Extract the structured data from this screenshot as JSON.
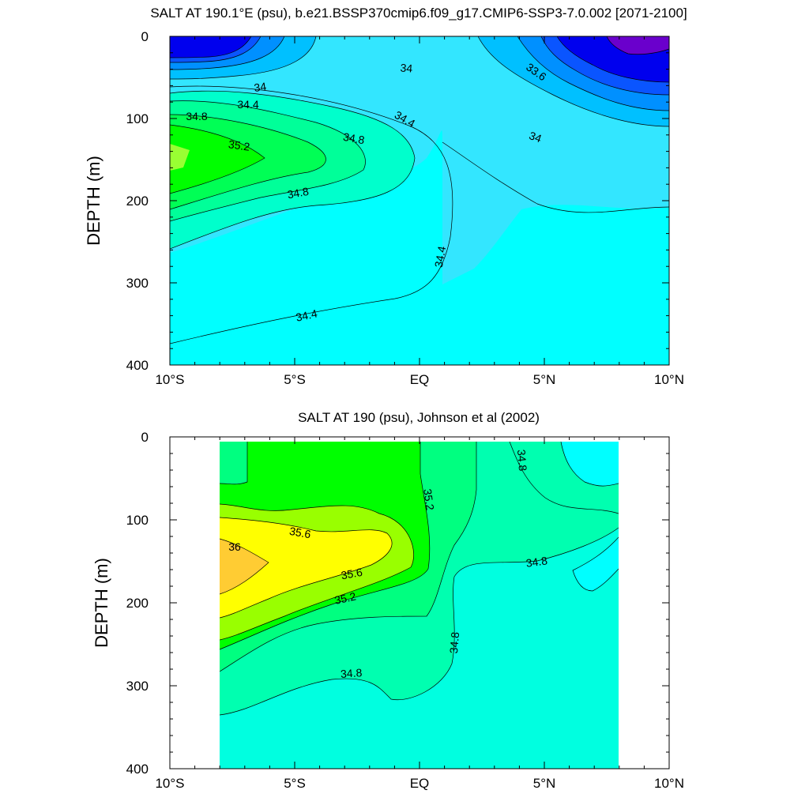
{
  "chart_data": [
    {
      "type": "contour",
      "title": "SALT AT 190.1°E (psu), b.e21.BSSP370cmip6.f09_g17.CMIP6-SSP3-7.0.002 [2071-2100]",
      "ylabel": "DEPTH (m)",
      "xlabel": "",
      "xlim": [
        -10,
        10
      ],
      "ylim": [
        0,
        400
      ],
      "x_ticks": [
        -10,
        -5,
        0,
        5,
        10
      ],
      "x_tick_labels": [
        "10°S",
        "5°S",
        "EQ",
        "5°N",
        "10°N"
      ],
      "y_ticks": [
        0,
        100,
        200,
        300,
        400
      ],
      "y_tick_labels": [
        "0",
        "100",
        "200",
        "300",
        "400"
      ],
      "contour_interval": 0.2,
      "fill_levels": [
        {
          "min": 33.2,
          "max": 33.4,
          "color": "#6a00cc"
        },
        {
          "min": 33.4,
          "max": 33.6,
          "color": "#0000ee"
        },
        {
          "min": 33.6,
          "max": 33.8,
          "color": "#0a55ff"
        },
        {
          "min": 33.8,
          "max": 34.0,
          "color": "#0090ff"
        },
        {
          "min": 34.0,
          "max": 34.2,
          "color": "#00c0ff"
        },
        {
          "min": 34.2,
          "max": 34.4,
          "color": "#33e6ff"
        },
        {
          "min": 34.4,
          "max": 34.6,
          "color": "#00ffff"
        },
        {
          "min": 34.6,
          "max": 34.8,
          "color": "#00ffcc"
        },
        {
          "min": 34.8,
          "max": 35.0,
          "color": "#00ff99"
        },
        {
          "min": 35.0,
          "max": 35.2,
          "color": "#00ff55"
        },
        {
          "min": 35.2,
          "max": 35.4,
          "color": "#00ff00"
        },
        {
          "min": 35.4,
          "max": 35.6,
          "color": "#99ff33"
        }
      ],
      "contour_labels": [
        "34",
        "34.4",
        "34.8",
        "35.2",
        "34.8",
        "34.4",
        "34",
        "34.4",
        "33.6",
        "34",
        "34.4"
      ]
    },
    {
      "type": "contour",
      "title": "SALT AT 190 (psu), Johnson et al (2002)",
      "ylabel": "DEPTH (m)",
      "xlabel": "",
      "xlim": [
        -10,
        10
      ],
      "ylim": [
        0,
        400
      ],
      "data_extent": {
        "lat_min": -8,
        "lat_max": 8,
        "depth_min": 5,
        "depth_max": 400
      },
      "x_ticks": [
        -10,
        -5,
        0,
        5,
        10
      ],
      "x_tick_labels": [
        "10°S",
        "5°S",
        "EQ",
        "5°N",
        "10°N"
      ],
      "y_ticks": [
        0,
        100,
        200,
        300,
        400
      ],
      "y_tick_labels": [
        "0",
        "100",
        "200",
        "300",
        "400"
      ],
      "contour_interval": 0.2,
      "fill_levels": [
        {
          "min": 34.4,
          "max": 34.6,
          "color": "#00ffff"
        },
        {
          "min": 34.6,
          "max": 34.8,
          "color": "#00ffe0"
        },
        {
          "min": 34.8,
          "max": 35.0,
          "color": "#00ffb0"
        },
        {
          "min": 35.0,
          "max": 35.2,
          "color": "#00ff80"
        },
        {
          "min": 35.2,
          "max": 35.4,
          "color": "#00ff00"
        },
        {
          "min": 35.4,
          "max": 35.6,
          "color": "#99ff00"
        },
        {
          "min": 35.6,
          "max": 35.8,
          "color": "#ffff00"
        },
        {
          "min": 35.8,
          "max": 36.0,
          "color": "#ffcc33"
        }
      ],
      "contour_labels": [
        "35.6",
        "36",
        "35.6",
        "35.2",
        "35.2",
        "34.8",
        "34.8",
        "34.8",
        "34.8"
      ]
    }
  ]
}
